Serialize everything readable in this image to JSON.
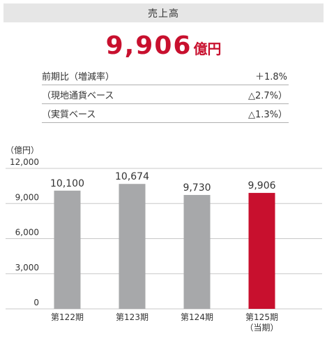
{
  "header": {
    "title": "売上高"
  },
  "headline": {
    "value": "9,906",
    "unit": "億円"
  },
  "stats": [
    {
      "label": "前期比（増減率）",
      "value": "＋1.8%"
    },
    {
      "label": "（現地通貨ベース",
      "value": "△2.7%）"
    },
    {
      "label": "（実質ベース",
      "value": "△1.3%）"
    }
  ],
  "colors": {
    "accent": "#c8102e",
    "bar": "#a7a8aa",
    "header_bg": "#e6e6e6"
  },
  "chart_data": {
    "type": "bar",
    "unit_label": "（億円）",
    "categories": [
      "第122期",
      "第123期",
      "第124期",
      "第125期"
    ],
    "category_sublabels": [
      "",
      "",
      "",
      "（当期）"
    ],
    "values": [
      10100,
      10674,
      9730,
      9906
    ],
    "value_labels": [
      "10,100",
      "10,674",
      "9,730",
      "9,906"
    ],
    "highlight_index": 3,
    "ylim": [
      0,
      12000
    ],
    "yticks": [
      0,
      3000,
      6000,
      9000,
      12000
    ],
    "ytick_labels": [
      "0",
      "3,000",
      "6,000",
      "9,000",
      "12,000"
    ],
    "grid": true
  }
}
